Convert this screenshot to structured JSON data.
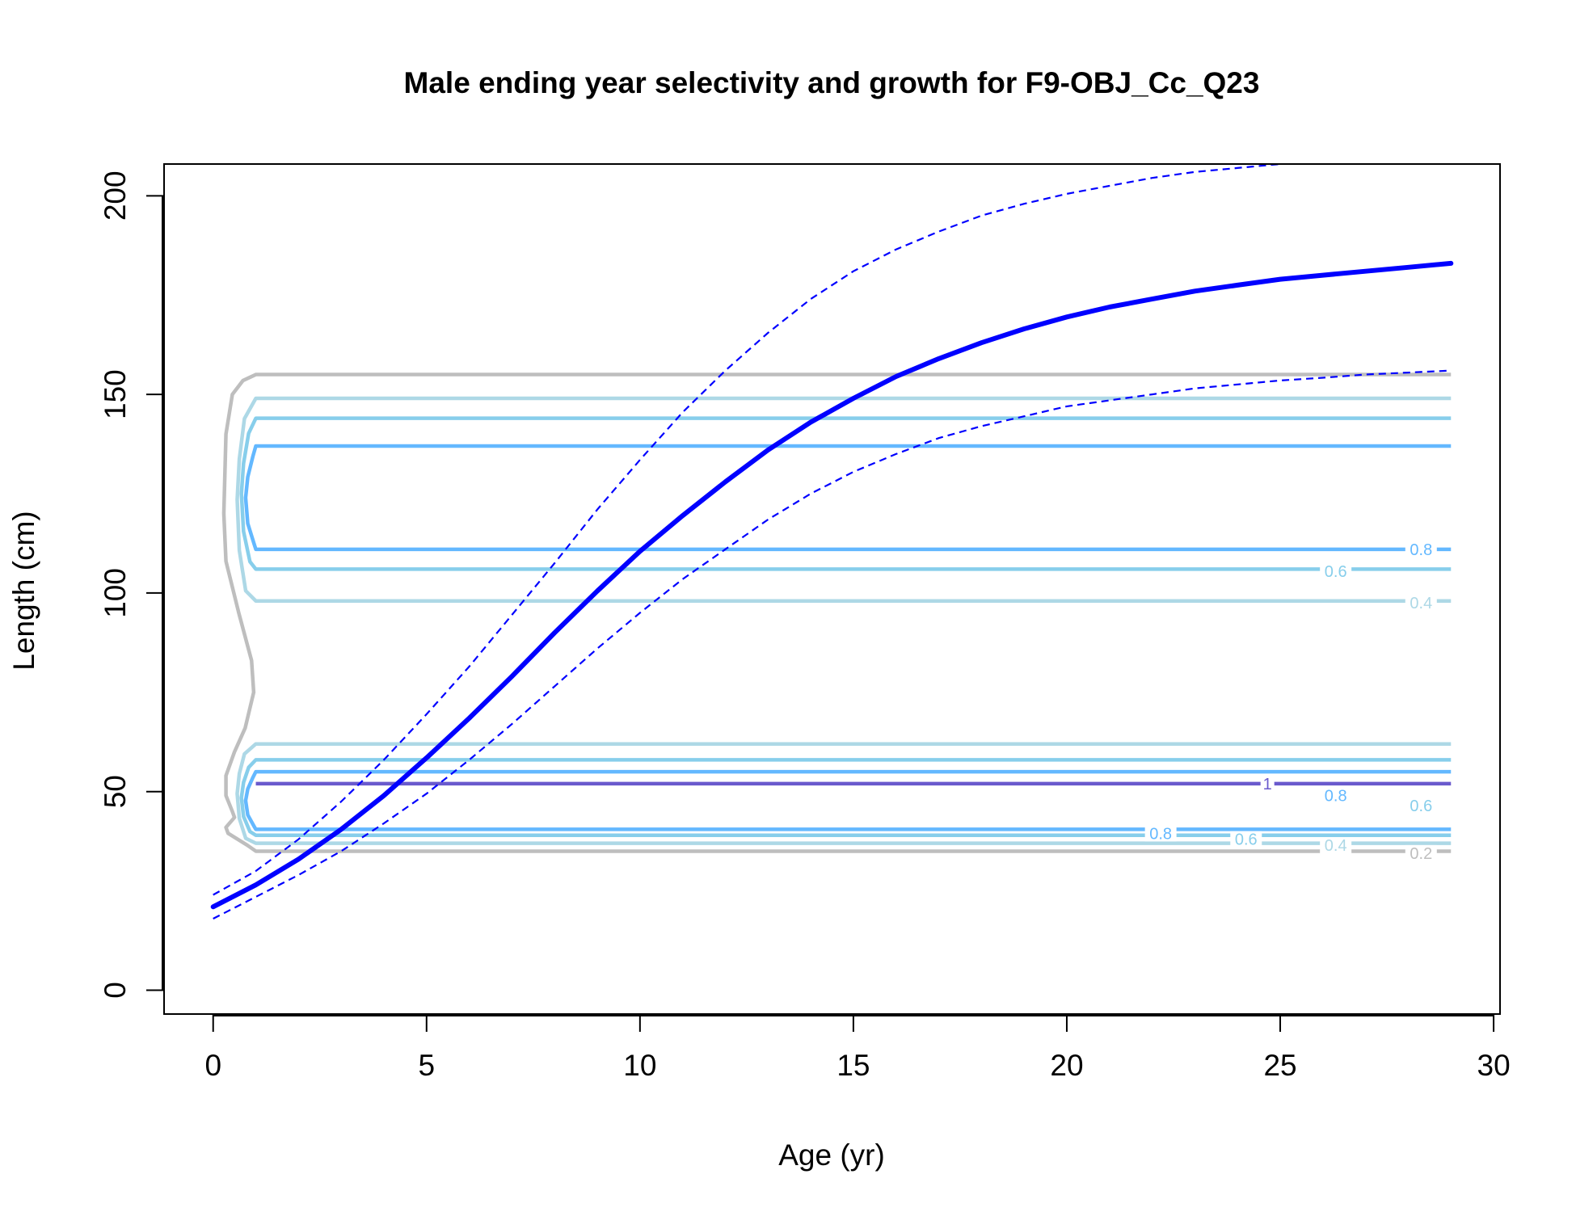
{
  "chart_data": {
    "type": "line",
    "title": "Male ending year selectivity and growth for F9-OBJ_Cc_Q23",
    "xlabel": "Age (yr)",
    "ylabel": "Length (cm)",
    "xlim": [
      -1.15,
      30.15
    ],
    "ylim": [
      -6,
      208
    ],
    "xticks": [
      "0",
      "5",
      "10",
      "15",
      "20",
      "25",
      "30"
    ],
    "yticks": [
      "0",
      "50",
      "100",
      "150",
      "200"
    ],
    "grid": false,
    "legend": "none",
    "growth": {
      "color": "#0000ff",
      "mean": {
        "x": [
          0,
          1,
          2,
          3,
          4,
          5,
          6,
          7,
          8,
          9,
          10,
          11,
          12,
          13,
          14,
          15,
          16,
          17,
          18,
          19,
          20,
          21,
          22,
          23,
          24,
          25,
          26,
          27,
          28,
          29
        ],
        "y": [
          21,
          26.5,
          33,
          40.5,
          49,
          58.5,
          68.5,
          79,
          90,
          100.5,
          110.5,
          119.5,
          128,
          136,
          143,
          149,
          154.5,
          159,
          163,
          166.5,
          169.5,
          172,
          174,
          176,
          177.5,
          179,
          180,
          181,
          182,
          183
        ]
      },
      "upper": {
        "x": [
          0,
          1,
          2,
          3,
          4,
          5,
          6,
          7,
          8,
          9,
          10,
          11,
          12,
          13,
          14,
          15,
          16,
          17,
          18,
          19,
          20,
          21,
          22,
          23,
          24,
          25,
          26,
          27,
          28,
          29
        ],
        "y": [
          24,
          30,
          38,
          47.5,
          58,
          69.5,
          81.5,
          94.5,
          107.5,
          121,
          133.5,
          145.5,
          156,
          165.5,
          174,
          181,
          186.5,
          191,
          195,
          198,
          200.5,
          202.5,
          204.5,
          206,
          207,
          208,
          208.7,
          209.3,
          209.8,
          210.2
        ]
      },
      "lower": {
        "x": [
          0,
          1,
          2,
          3,
          4,
          5,
          6,
          7,
          8,
          9,
          10,
          11,
          12,
          13,
          14,
          15,
          16,
          17,
          18,
          19,
          20,
          21,
          22,
          23,
          24,
          25,
          26,
          27,
          28,
          29
        ],
        "y": [
          18,
          23.5,
          29,
          35,
          42,
          49.5,
          58,
          67,
          76.5,
          86,
          95,
          103.5,
          111,
          118.5,
          125,
          130.5,
          135,
          139,
          142,
          144.5,
          147,
          148.5,
          150,
          151.5,
          152.5,
          153.5,
          154.2,
          155,
          155.5,
          156
        ]
      }
    },
    "contours": {
      "age_start": 1,
      "age_end": 29,
      "label_age": 28.1,
      "levels": [
        {
          "level": 0.2,
          "color": "#bebebe",
          "bands": [
            [
              35,
              155
            ]
          ]
        },
        {
          "level": 0.4,
          "color": "#add8e6",
          "bands": [
            [
              37,
              62
            ],
            [
              98,
              149
            ]
          ]
        },
        {
          "level": 0.6,
          "color": "#87ceeb",
          "bands": [
            [
              39,
              58
            ],
            [
              106,
              144
            ]
          ]
        },
        {
          "level": 0.8,
          "color": "#63b8ff",
          "bands": [
            [
              40.5,
              55
            ],
            [
              111,
              137
            ]
          ]
        },
        {
          "level": 1,
          "color": "#6a5acd",
          "bands": [
            [
              52,
              52
            ]
          ]
        }
      ],
      "labels": [
        {
          "text": "0.8",
          "age": 28.3,
          "length": 111,
          "color": "#63b8ff"
        },
        {
          "text": "0.6",
          "age": 26.3,
          "length": 105.5,
          "color": "#87ceeb"
        },
        {
          "text": "0.4",
          "age": 28.3,
          "length": 97.5,
          "color": "#add8e6"
        },
        {
          "text": "1",
          "age": 24.7,
          "length": 52,
          "color": "#6a5acd"
        },
        {
          "text": "0.8",
          "age": 26.3,
          "length": 49,
          "color": "#63b8ff"
        },
        {
          "text": "0.6",
          "age": 28.3,
          "length": 46.5,
          "color": "#87ceeb"
        },
        {
          "text": "0.8",
          "age": 22.2,
          "length": 39.5,
          "color": "#63b8ff"
        },
        {
          "text": "0.6",
          "age": 24.2,
          "length": 38,
          "color": "#87ceeb"
        },
        {
          "text": "0.4",
          "age": 26.3,
          "length": 36.5,
          "color": "#add8e6"
        },
        {
          "text": "0.2",
          "age": 28.3,
          "length": 34.5,
          "color": "#bebebe"
        }
      ]
    }
  }
}
